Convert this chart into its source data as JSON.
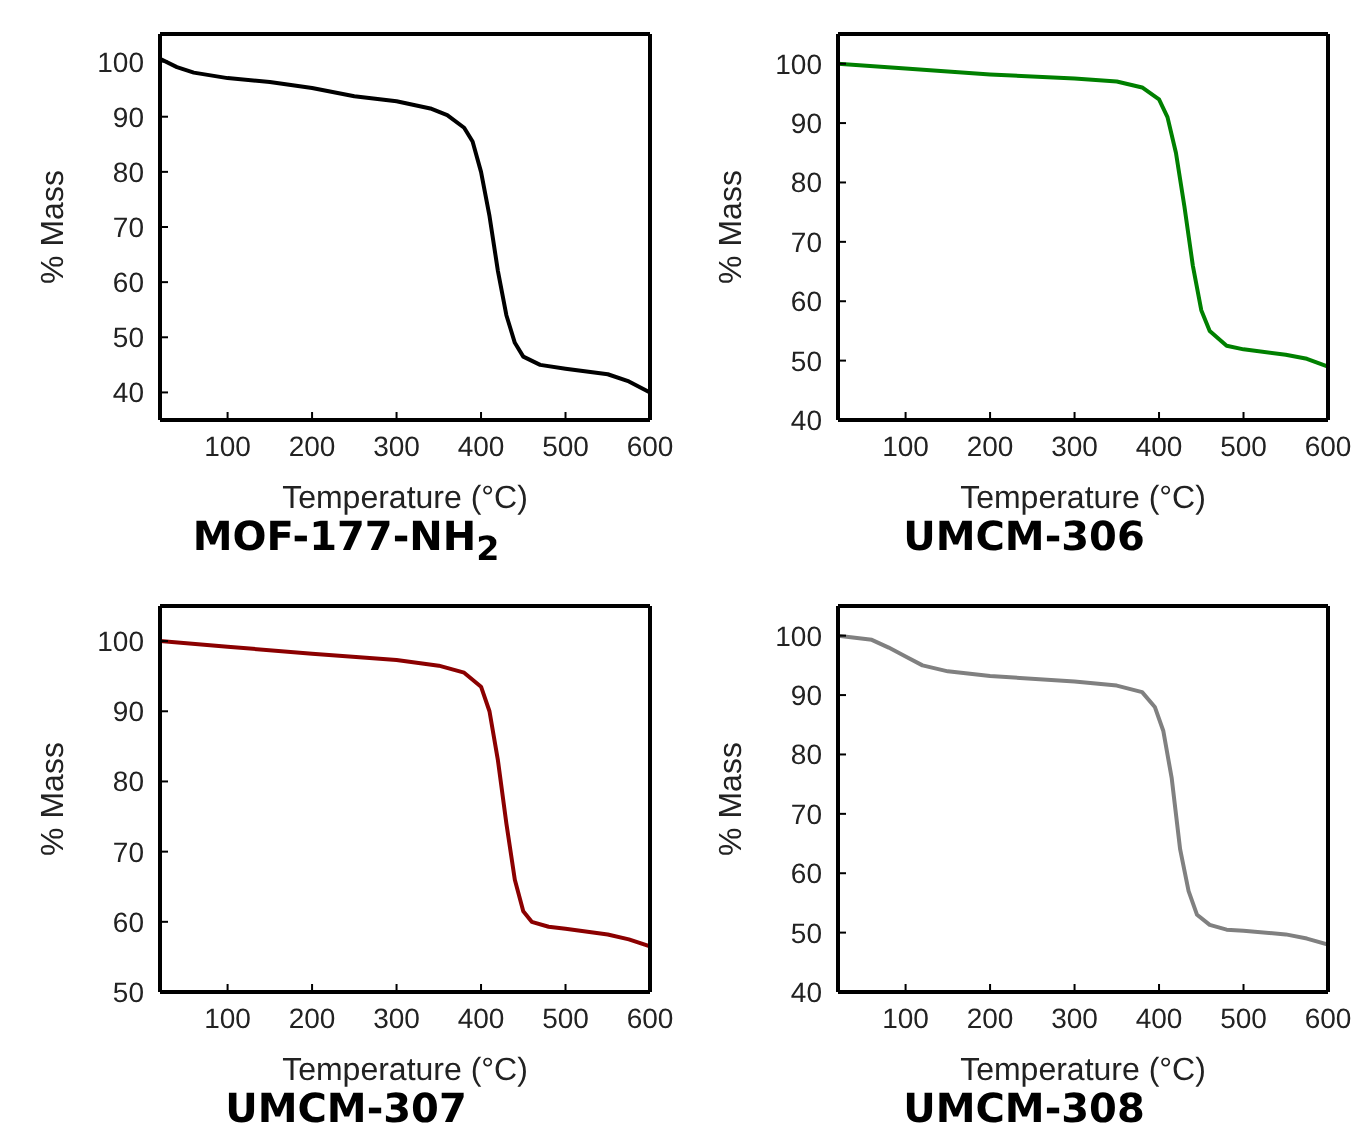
{
  "chart_data": [
    {
      "type": "line",
      "title": "MOF-177-NH$_{2}$",
      "xlabel": "Temperature (°C)",
      "ylabel": "% Mass",
      "xlim": [
        20,
        600
      ],
      "xticks": [
        100,
        200,
        300,
        400,
        500,
        600
      ],
      "ylim": [
        35,
        105
      ],
      "yticks": [
        40,
        50,
        60,
        70,
        80,
        90,
        100
      ],
      "grid": false,
      "legend": false,
      "marker": "none",
      "x": [
        20,
        40,
        60,
        100,
        150,
        200,
        250,
        300,
        340,
        360,
        380,
        390,
        400,
        410,
        420,
        430,
        440,
        450,
        470,
        500,
        550,
        575,
        600
      ],
      "series": [
        {
          "color": "#000000",
          "values": [
            100.5,
            99,
            98,
            97,
            96.3,
            95.2,
            93.7,
            92.8,
            91.5,
            90.3,
            88,
            85.5,
            80,
            72,
            62,
            54,
            49,
            46.5,
            45,
            44.3,
            43.3,
            42,
            40
          ]
        }
      ]
    },
    {
      "type": "line",
      "title": "UMCM-306",
      "xlabel": "Temperature (°C)",
      "ylabel": "% Mass",
      "xlim": [
        20,
        600
      ],
      "xticks": [
        100,
        200,
        300,
        400,
        500,
        600
      ],
      "ylim": [
        40,
        105
      ],
      "yticks": [
        40,
        50,
        60,
        70,
        80,
        90,
        100
      ],
      "grid": false,
      "legend": false,
      "marker": "none",
      "x": [
        20,
        100,
        200,
        300,
        350,
        380,
        400,
        410,
        420,
        430,
        440,
        450,
        460,
        480,
        500,
        550,
        575,
        600
      ],
      "series": [
        {
          "color": "#008000",
          "values": [
            100,
            99.2,
            98.2,
            97.5,
            97,
            96,
            94,
            91,
            85,
            76,
            66,
            58.5,
            55,
            52.5,
            51.9,
            51,
            50.3,
            49
          ]
        }
      ]
    },
    {
      "type": "line",
      "title": "UMCM-307",
      "xlabel": "Temperature (°C)",
      "ylabel": "% Mass",
      "xlim": [
        20,
        600
      ],
      "xticks": [
        100,
        200,
        300,
        400,
        500,
        600
      ],
      "ylim": [
        50,
        105
      ],
      "yticks": [
        50,
        60,
        70,
        80,
        90,
        100
      ],
      "grid": false,
      "legend": false,
      "marker": "none",
      "x": [
        20,
        100,
        200,
        300,
        350,
        380,
        400,
        410,
        420,
        430,
        440,
        450,
        460,
        480,
        500,
        550,
        575,
        600
      ],
      "series": [
        {
          "color": "#8b0000",
          "values": [
            100,
            99.2,
            98.2,
            97.3,
            96.5,
            95.5,
            93.5,
            90,
            83,
            74,
            66,
            61.5,
            60,
            59.3,
            59,
            58.2,
            57.5,
            56.5
          ]
        }
      ]
    },
    {
      "type": "line",
      "title": "UMCM-308",
      "xlabel": "Temperature (°C)",
      "ylabel": "% Mass",
      "xlim": [
        20,
        600
      ],
      "xticks": [
        100,
        200,
        300,
        400,
        500,
        600
      ],
      "ylim": [
        40,
        105
      ],
      "yticks": [
        40,
        50,
        60,
        70,
        80,
        90,
        100
      ],
      "grid": false,
      "legend": false,
      "marker": "none",
      "x": [
        20,
        60,
        80,
        100,
        120,
        150,
        200,
        300,
        350,
        380,
        395,
        405,
        415,
        425,
        435,
        445,
        460,
        480,
        500,
        550,
        575,
        600
      ],
      "series": [
        {
          "color": "#808080",
          "values": [
            100,
            99.3,
            98,
            96.5,
            95,
            94,
            93.2,
            92.3,
            91.6,
            90.5,
            88,
            84,
            76,
            64,
            57,
            53,
            51.3,
            50.5,
            50.3,
            49.7,
            49,
            48
          ]
        }
      ]
    }
  ]
}
